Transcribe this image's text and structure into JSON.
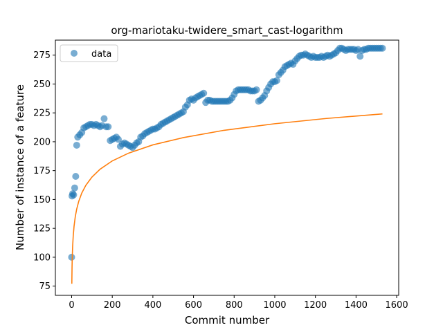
{
  "chart_data": {
    "type": "scatter",
    "title": "org-mariotaku-twidere_smart_cast-logarithm",
    "xlabel": "Commit number",
    "ylabel": "Number of instance of a feature",
    "xlim": [
      -80,
      1610
    ],
    "ylim": [
      67,
      288
    ],
    "xticks": [
      0,
      200,
      400,
      600,
      800,
      1000,
      1200,
      1400,
      1600
    ],
    "yticks": [
      75,
      100,
      125,
      150,
      175,
      200,
      225,
      250,
      275
    ],
    "grid": false,
    "legend": {
      "position": "top-left",
      "entries": [
        "data"
      ]
    },
    "colors": {
      "data": "#1f77b4",
      "fit": "#ff7f0e"
    },
    "series": [
      {
        "name": "data",
        "kind": "scatter",
        "x": [
          0,
          2,
          5,
          10,
          15,
          20,
          25,
          30,
          40,
          50,
          60,
          70,
          80,
          90,
          100,
          110,
          120,
          130,
          140,
          150,
          160,
          170,
          180,
          190,
          200,
          210,
          220,
          230,
          240,
          250,
          260,
          270,
          280,
          290,
          300,
          310,
          320,
          330,
          340,
          350,
          360,
          370,
          380,
          390,
          400,
          410,
          420,
          430,
          440,
          450,
          460,
          470,
          480,
          490,
          500,
          510,
          520,
          530,
          540,
          550,
          560,
          570,
          580,
          590,
          600,
          610,
          620,
          630,
          640,
          650,
          660,
          670,
          680,
          690,
          700,
          710,
          720,
          730,
          740,
          750,
          760,
          770,
          780,
          790,
          800,
          810,
          820,
          830,
          840,
          850,
          860,
          870,
          880,
          890,
          900,
          910,
          920,
          930,
          940,
          950,
          960,
          970,
          980,
          990,
          1000,
          1010,
          1020,
          1030,
          1040,
          1050,
          1060,
          1070,
          1080,
          1090,
          1100,
          1110,
          1120,
          1130,
          1140,
          1150,
          1160,
          1170,
          1180,
          1190,
          1200,
          1210,
          1220,
          1230,
          1240,
          1250,
          1260,
          1270,
          1280,
          1290,
          1300,
          1310,
          1320,
          1330,
          1340,
          1350,
          1360,
          1370,
          1380,
          1390,
          1400,
          1410,
          1420,
          1430,
          1440,
          1450,
          1460,
          1470,
          1480,
          1490,
          1500,
          1510,
          1520,
          1530
        ],
        "y": [
          100,
          153,
          155,
          154,
          160,
          170,
          197,
          204,
          206,
          208,
          212,
          213,
          214,
          215,
          215,
          214,
          215,
          214,
          213,
          214,
          220,
          213,
          213,
          201,
          202,
          203,
          204,
          202,
          196,
          198,
          199,
          198,
          197,
          196,
          195,
          197,
          199,
          200,
          204,
          205,
          207,
          208,
          209,
          210,
          211,
          211,
          212,
          213,
          215,
          216,
          217,
          218,
          219,
          220,
          221,
          222,
          223,
          224,
          225,
          226,
          230,
          232,
          236,
          237,
          236,
          238,
          239,
          240,
          241,
          242,
          234,
          236,
          236,
          235,
          235,
          235,
          235,
          235,
          235,
          235,
          235,
          235,
          236,
          238,
          241,
          244,
          245,
          245,
          245,
          245,
          245,
          245,
          244,
          244,
          244,
          245,
          235,
          236,
          238,
          240,
          244,
          247,
          250,
          252,
          252,
          253,
          258,
          260,
          262,
          265,
          266,
          267,
          268,
          267,
          270,
          272,
          274,
          275,
          275,
          276,
          275,
          274,
          273,
          274,
          273,
          273,
          273,
          274,
          273,
          274,
          275,
          274,
          275,
          276,
          277,
          279,
          281,
          281,
          280,
          279,
          280,
          280,
          280,
          280,
          279,
          280,
          274,
          279,
          280,
          280,
          281,
          281,
          281,
          281,
          281,
          281,
          281,
          281
        ]
      },
      {
        "name": "",
        "kind": "line",
        "x": [
          1,
          2,
          3,
          5,
          8,
          12,
          18,
          25,
          35,
          50,
          70,
          100,
          140,
          200,
          280,
          400,
          550,
          750,
          1000,
          1250,
          1530
        ],
        "y": [
          77,
          90.9,
          99.1,
          109.4,
          118.8,
          126.9,
          135.1,
          141.7,
          148.4,
          155.6,
          162.3,
          169.4,
          176.2,
          183.4,
          190.1,
          197.3,
          203.6,
          209.9,
          215.6,
          220.1,
          224.1
        ]
      }
    ]
  }
}
